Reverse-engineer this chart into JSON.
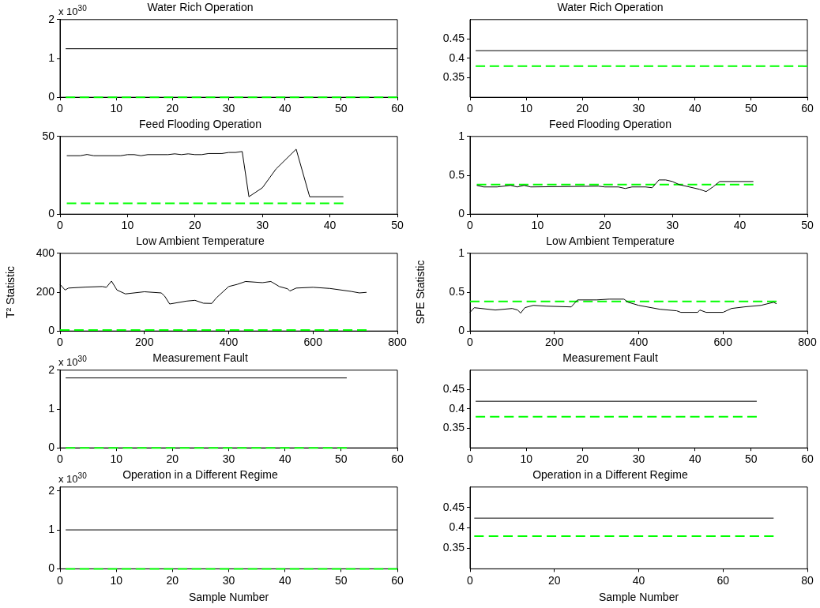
{
  "chart_data": [
    {
      "type": "line",
      "title": "Water Rich Operation",
      "annotations": [
        "x 10$^{30}$"
      ],
      "xlim": [
        0,
        60
      ],
      "xticks": [
        0,
        10,
        20,
        30,
        40,
        50,
        60
      ],
      "ylim": [
        0,
        2
      ],
      "yticks": [
        0,
        1,
        2
      ],
      "series": [
        {
          "color": "#000000",
          "x": [
            1,
            60
          ],
          "values": [
            1.25,
            1.25
          ]
        },
        {
          "color": "#00ff00",
          "line_style": "dashed",
          "x": [
            1,
            60
          ],
          "values": [
            0,
            0
          ]
        }
      ]
    },
    {
      "type": "line",
      "title": "Water Rich Operation",
      "xlim": [
        0,
        60
      ],
      "xticks": [
        0,
        10,
        20,
        30,
        40,
        50,
        60
      ],
      "ylim": [
        0.3,
        0.5
      ],
      "yticks": [
        0.35,
        0.4,
        0.45
      ],
      "series": [
        {
          "color": "#000000",
          "x": [
            1,
            60
          ],
          "values": [
            0.42,
            0.42
          ]
        },
        {
          "color": "#00ff00",
          "line_style": "dashed",
          "x": [
            1,
            60
          ],
          "values": [
            0.38,
            0.38
          ]
        }
      ]
    },
    {
      "type": "line",
      "title": "Feed Flooding Operation",
      "xlim": [
        0,
        50
      ],
      "xticks": [
        0,
        10,
        20,
        30,
        40,
        50
      ],
      "ylim": [
        0,
        50
      ],
      "yticks": [
        0,
        50
      ],
      "series": [
        {
          "color": "#000000",
          "x": [
            1,
            3,
            4,
            5,
            9,
            10,
            11,
            12,
            13,
            16,
            17,
            18,
            19,
            20,
            21,
            22,
            24,
            25,
            26,
            27,
            28,
            30,
            32,
            35,
            37,
            42
          ],
          "values": [
            37.6,
            37.6,
            38.4,
            37.6,
            37.6,
            38.3,
            38.3,
            37.6,
            38.3,
            38.3,
            38.8,
            38.3,
            38.8,
            38.3,
            38.3,
            39,
            39,
            39.7,
            39.7,
            40.3,
            11.2,
            17,
            29,
            41.8,
            11.2,
            11.2
          ]
        },
        {
          "color": "#00ff00",
          "line_style": "dashed",
          "x": [
            1,
            42
          ],
          "values": [
            7,
            7
          ]
        }
      ]
    },
    {
      "type": "line",
      "title": "Feed Flooding Operation",
      "xlim": [
        0,
        50
      ],
      "xticks": [
        0,
        10,
        20,
        30,
        40,
        50
      ],
      "ylim": [
        0,
        1
      ],
      "yticks": [
        0,
        0.5,
        1
      ],
      "series": [
        {
          "color": "#000000",
          "x": [
            1,
            2,
            4,
            6,
            7,
            8,
            9,
            19,
            20,
            22,
            23,
            24,
            26,
            27,
            28,
            29,
            30,
            31,
            34,
            35,
            36,
            37,
            42
          ],
          "values": [
            0.37,
            0.35,
            0.35,
            0.37,
            0.35,
            0.37,
            0.35,
            0.36,
            0.35,
            0.35,
            0.33,
            0.35,
            0.35,
            0.34,
            0.44,
            0.44,
            0.42,
            0.38,
            0.32,
            0.29,
            0.35,
            0.42,
            0.42
          ]
        },
        {
          "color": "#00ff00",
          "line_style": "dashed",
          "x": [
            1,
            42
          ],
          "values": [
            0.38,
            0.38
          ]
        }
      ]
    },
    {
      "type": "line",
      "title": "Low Ambient Temperature",
      "ylabel": "T² Statistic",
      "xlim": [
        0,
        800
      ],
      "xticks": [
        0,
        200,
        400,
        600,
        800
      ],
      "ylim": [
        0,
        400
      ],
      "yticks": [
        0,
        200,
        400
      ],
      "series": [
        {
          "color": "#000000",
          "x": [
            0,
            12,
            20,
            60,
            100,
            110,
            122,
            135,
            155,
            200,
            240,
            248,
            260,
            300,
            320,
            340,
            360,
            370,
            400,
            420,
            440,
            480,
            500,
            520,
            540,
            545,
            560,
            600,
            640,
            690,
            710,
            727
          ],
          "values": [
            240,
            211,
            221,
            226,
            229,
            225,
            257,
            211,
            191,
            202,
            196,
            180,
            139,
            154,
            158,
            143,
            142,
            169,
            229,
            240,
            255,
            249,
            255,
            229,
            217,
            206,
            221,
            225,
            219,
            204,
            196,
            199
          ]
        },
        {
          "color": "#00ff00",
          "line_style": "dashed",
          "x": [
            0,
            727
          ],
          "values": [
            5,
            5
          ]
        }
      ]
    },
    {
      "type": "line",
      "title": "Low Ambient Temperature",
      "ylabel": "SPE Statistic",
      "xlim": [
        0,
        800
      ],
      "xticks": [
        0,
        200,
        400,
        600,
        800
      ],
      "ylim": [
        0,
        1
      ],
      "yticks": [
        0,
        0.5,
        1
      ],
      "series": [
        {
          "color": "#000000",
          "x": [
            0,
            10,
            60,
            100,
            113,
            120,
            130,
            150,
            180,
            240,
            255,
            300,
            330,
            365,
            375,
            400,
            450,
            490,
            500,
            540,
            545,
            560,
            600,
            620,
            650,
            690,
            720,
            727
          ],
          "values": [
            0.24,
            0.3,
            0.27,
            0.29,
            0.27,
            0.23,
            0.3,
            0.33,
            0.32,
            0.31,
            0.4,
            0.4,
            0.41,
            0.41,
            0.37,
            0.33,
            0.28,
            0.26,
            0.24,
            0.24,
            0.27,
            0.24,
            0.24,
            0.29,
            0.31,
            0.33,
            0.37,
            0.35
          ]
        },
        {
          "color": "#00ff00",
          "line_style": "dashed",
          "x": [
            0,
            727
          ],
          "values": [
            0.38,
            0.38
          ]
        }
      ]
    },
    {
      "type": "line",
      "title": "Measurement Fault",
      "annotations": [
        "x 10$^{30}$"
      ],
      "xlim": [
        0,
        60
      ],
      "xticks": [
        0,
        10,
        20,
        30,
        40,
        50,
        60
      ],
      "ylim": [
        0,
        2
      ],
      "yticks": [
        0,
        1,
        2
      ],
      "series": [
        {
          "color": "#000000",
          "x": [
            1,
            51
          ],
          "values": [
            1.8,
            1.8
          ]
        },
        {
          "color": "#00ff00",
          "line_style": "dashed",
          "x": [
            1,
            51
          ],
          "values": [
            0,
            0
          ]
        }
      ]
    },
    {
      "type": "line",
      "title": "Measurement Fault",
      "xlim": [
        0,
        60
      ],
      "xticks": [
        0,
        10,
        20,
        30,
        40,
        50,
        60
      ],
      "ylim": [
        0.3,
        0.5
      ],
      "yticks": [
        0.35,
        0.4,
        0.45
      ],
      "series": [
        {
          "color": "#000000",
          "x": [
            1,
            51
          ],
          "values": [
            0.42,
            0.42
          ]
        },
        {
          "color": "#00ff00",
          "line_style": "dashed",
          "x": [
            1,
            51
          ],
          "values": [
            0.38,
            0.38
          ]
        }
      ]
    },
    {
      "type": "line",
      "title": "Operation in a Different Regime",
      "annotations": [
        "x 10$^{30}$"
      ],
      "xlabel": "Sample Number",
      "xlim": [
        0,
        60
      ],
      "xticks": [
        0,
        10,
        20,
        30,
        40,
        50,
        60
      ],
      "ylim": [
        0,
        2.1
      ],
      "yticks": [
        0,
        1,
        2
      ],
      "series": [
        {
          "color": "#000000",
          "x": [
            1,
            60
          ],
          "values": [
            1,
            1
          ]
        },
        {
          "color": "#00ff00",
          "line_style": "dashed",
          "x": [
            1,
            60
          ],
          "values": [
            0,
            0
          ]
        }
      ]
    },
    {
      "type": "line",
      "title": "Operation in a Different Regime",
      "xlabel": "Sample Number",
      "xlim": [
        0,
        80
      ],
      "xticks": [
        0,
        20,
        40,
        60,
        80
      ],
      "ylim": [
        0.3,
        0.5
      ],
      "yticks": [
        0.35,
        0.4,
        0.45
      ],
      "series": [
        {
          "color": "#000000",
          "x": [
            1,
            72
          ],
          "values": [
            0.424,
            0.424
          ]
        },
        {
          "color": "#00ff00",
          "line_style": "dashed",
          "x": [
            1,
            72
          ],
          "values": [
            0.38,
            0.38
          ]
        }
      ]
    }
  ]
}
